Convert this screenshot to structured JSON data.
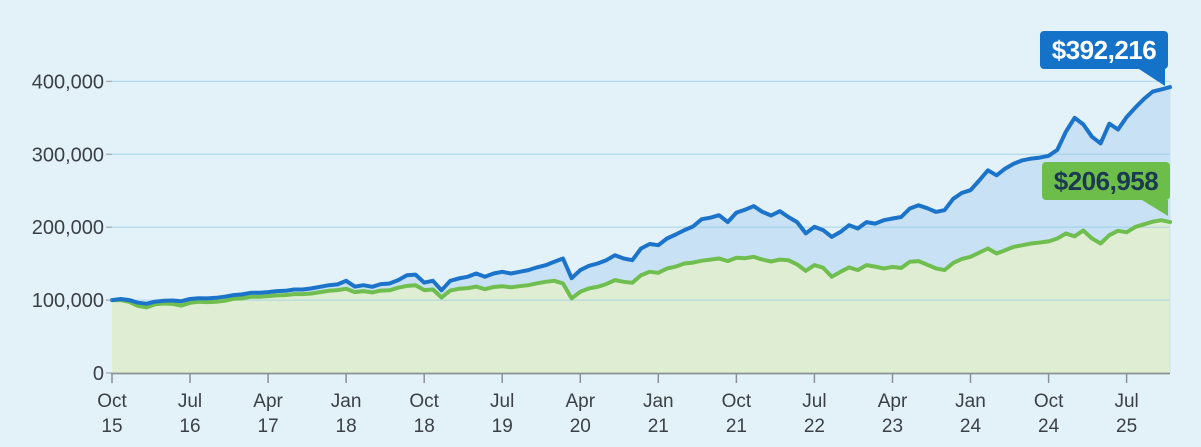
{
  "colors": {
    "background": "#E3F2F9",
    "gridline": "#8FCBE4",
    "axis": "#8A9096",
    "label_text": "#3B4046",
    "blue_accent": "#1472C8",
    "green_accent": "#6CBD4A",
    "green_callout_text": "#1B3A50"
  },
  "chart_data": {
    "type": "area",
    "title": "",
    "grid": true,
    "legend": "none",
    "x_start": "Oct 2015",
    "x_interval": "monthly",
    "x_tick_every_months": 9,
    "x_tick_labels": [
      "Oct 15",
      "Jul 16",
      "Apr 17",
      "Jan 18",
      "Oct 18",
      "Jul 19",
      "Apr 20",
      "Jan 21",
      "Oct 21",
      "Jul 22",
      "Apr 23",
      "Jan 24",
      "Oct 24",
      "Jul 25"
    ],
    "y_tick_values": [
      0,
      100000,
      200000,
      300000,
      400000
    ],
    "y_tick_labels": [
      "0",
      "100,000",
      "200,000",
      "300,000",
      "400,000"
    ],
    "ylim": [
      0,
      440000
    ],
    "series": [
      {
        "name": "blue-series",
        "end_label": "$392,216",
        "end_value": 392216,
        "line_color": "#1C74CA",
        "fill_color": "#C8E1F4",
        "callout_bg": "#1472C8",
        "callout_text_color": "#FFFFFF",
        "values": [
          100000,
          101500,
          100000,
          96500,
          95000,
          98000,
          99000,
          99500,
          98500,
          101500,
          102500,
          102300,
          103200,
          104600,
          106800,
          107800,
          110000,
          110000,
          111000,
          112300,
          112800,
          114600,
          114600,
          116000,
          118200,
          120500,
          121500,
          126500,
          118500,
          120500,
          118200,
          121900,
          122800,
          127400,
          134000,
          135000,
          124000,
          126500,
          113500,
          126500,
          129700,
          131900,
          136500,
          131900,
          136500,
          138800,
          136500,
          138800,
          141100,
          144800,
          147900,
          152500,
          157000,
          130000,
          141100,
          147000,
          150200,
          154800,
          161600,
          157100,
          154800,
          170800,
          177000,
          175300,
          184500,
          190000,
          196000,
          201000,
          211000,
          213000,
          216500,
          207000,
          220000,
          224000,
          229000,
          221000,
          216000,
          222000,
          214000,
          207000,
          191500,
          200500,
          196000,
          186700,
          193600,
          202700,
          198200,
          207000,
          205000,
          209600,
          212000,
          214000,
          225600,
          230000,
          226000,
          221000,
          223300,
          239000,
          247000,
          250700,
          264000,
          278000,
          271200,
          280400,
          287200,
          291800,
          294100,
          295500,
          298000,
          306000,
          331000,
          350000,
          341000,
          324000,
          315000,
          342000,
          334000,
          351000,
          364000,
          376000,
          386000,
          389000,
          392216
        ]
      },
      {
        "name": "green-series",
        "end_label": "$206,958",
        "end_value": 206958,
        "line_color": "#6FBE4F",
        "fill_color": "#DFEED2",
        "callout_bg": "#6CBD4A",
        "callout_text_color": "#1B3A50",
        "values": [
          100000,
          100000,
          97500,
          92000,
          90000,
          94500,
          95400,
          94800,
          92500,
          96300,
          97700,
          97200,
          97700,
          99100,
          101800,
          102300,
          104600,
          104600,
          105500,
          106400,
          106800,
          108200,
          108200,
          109100,
          111000,
          112800,
          113700,
          115500,
          111000,
          112300,
          110500,
          113000,
          113500,
          117000,
          119500,
          120500,
          113700,
          114500,
          103500,
          113000,
          115500,
          116500,
          118500,
          115000,
          118000,
          119000,
          117500,
          119000,
          120500,
          123000,
          125100,
          126500,
          122800,
          102300,
          111400,
          116000,
          118200,
          121900,
          127400,
          125100,
          123700,
          134200,
          138800,
          137400,
          143400,
          146000,
          150200,
          151500,
          154000,
          155500,
          157100,
          153500,
          158000,
          157500,
          159400,
          155500,
          153000,
          155500,
          154800,
          149000,
          140000,
          148000,
          144500,
          132000,
          138800,
          144800,
          141100,
          148000,
          146000,
          143400,
          145500,
          144000,
          152500,
          153500,
          148500,
          143500,
          141100,
          151000,
          156500,
          159400,
          165000,
          170800,
          163900,
          168500,
          173100,
          175300,
          177600,
          179000,
          180500,
          184500,
          191300,
          187500,
          195500,
          184500,
          177600,
          189000,
          195000,
          193000,
          200400,
          204000,
          207500,
          209600,
          206958
        ]
      }
    ]
  }
}
